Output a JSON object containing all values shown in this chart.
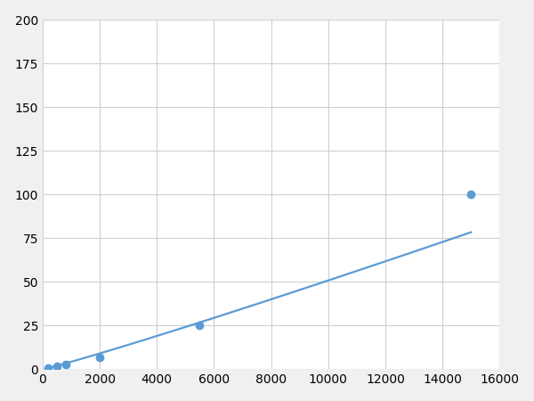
{
  "x": [
    200,
    500,
    800,
    2000,
    5500,
    15000
  ],
  "y": [
    1,
    2,
    3,
    7,
    25,
    100
  ],
  "line_color": "#5b9bd5",
  "marker_color": "#5b9bd5",
  "marker_size": 6,
  "line_width": 1.6,
  "xlim": [
    0,
    16000
  ],
  "ylim": [
    0,
    200
  ],
  "xticks": [
    0,
    2000,
    4000,
    6000,
    8000,
    10000,
    12000,
    14000,
    16000
  ],
  "yticks": [
    0,
    25,
    50,
    75,
    100,
    125,
    150,
    175,
    200
  ],
  "grid_color": "#d0d0d0",
  "bg_color": "#ffffff",
  "figure_bg": "#f0f0f0",
  "tick_fontsize": 10
}
